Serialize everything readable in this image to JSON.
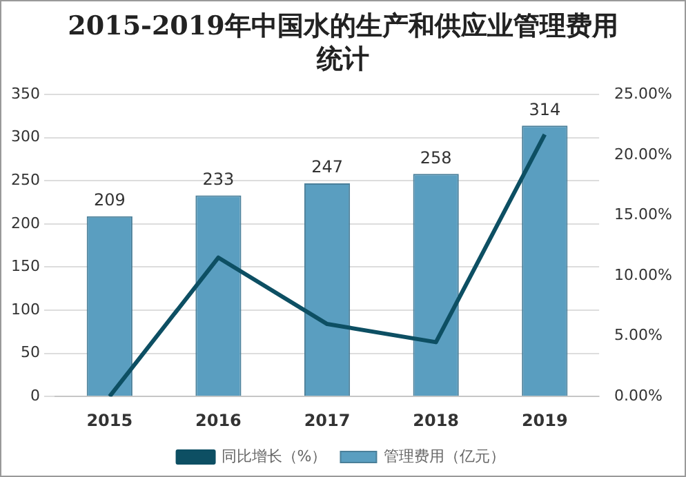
{
  "chart_data": {
    "type": "bar",
    "title": "2015-2019年中国水的生产和供应业管理费用统计",
    "categories": [
      "2015",
      "2016",
      "2017",
      "2018",
      "2019"
    ],
    "series": [
      {
        "name": "管理费用（亿元）",
        "color": "#5a9ec0",
        "values": [
          209,
          233,
          247,
          258,
          314
        ],
        "data_labels": true
      },
      {
        "name": "同比增长（%）",
        "type": "line",
        "axis": "y2",
        "color": "#0d4f63",
        "values": [
          0,
          11.5,
          6.0,
          4.5,
          21.7
        ]
      }
    ],
    "ylim": [
      0,
      350
    ],
    "yticks": [
      0,
      50,
      100,
      150,
      200,
      250,
      300,
      350
    ],
    "y2lim": [
      0,
      25
    ],
    "y2ticks": [
      {
        "value": 0,
        "label": "0.00%"
      },
      {
        "value": 5,
        "label": "5.00%"
      },
      {
        "value": 10,
        "label": "10.00%"
      },
      {
        "value": 15,
        "label": "15.00%"
      },
      {
        "value": 20,
        "label": "20.00%"
      },
      {
        "value": 25,
        "label": "25.00%"
      }
    ],
    "grid": "y",
    "legend": "bottom",
    "marker": "none"
  }
}
